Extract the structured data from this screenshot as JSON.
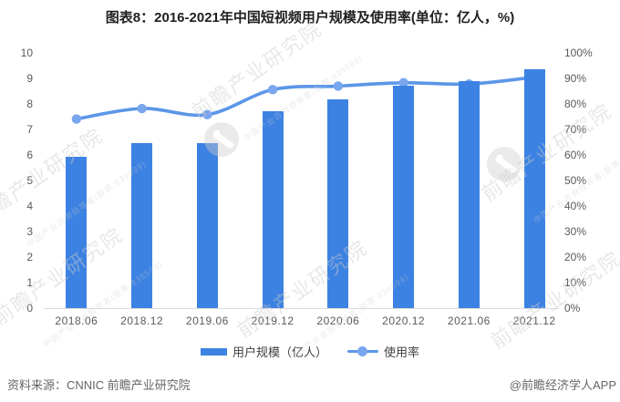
{
  "title": "图表8：2016-2021年中国短视频用户规模及使用率(单位：亿人，%)",
  "chart_data": {
    "type": "bar",
    "subtype": "bar-line-combo",
    "title": "图表8：2016-2021年中国短视频用户规模及使用率(单位：亿人，%)",
    "categories": [
      "2018.06",
      "2018.12",
      "2019.06",
      "2019.12",
      "2020.06",
      "2020.12",
      "2021.06",
      "2021.12"
    ],
    "series": [
      {
        "name": "用户规模（亿人）",
        "type": "bar",
        "axis": "left",
        "color": "#3c82e2",
        "values": [
          5.94,
          6.48,
          6.48,
          7.73,
          8.18,
          8.73,
          8.88,
          9.34
        ]
      },
      {
        "name": "使用率",
        "type": "line",
        "axis": "right",
        "color": "#5b96e8",
        "marker_color": "#7aa6ee",
        "values": [
          74.1,
          78.2,
          75.8,
          85.6,
          87.0,
          88.3,
          87.8,
          90.5
        ]
      }
    ],
    "y_axis_left": {
      "min": 0,
      "max": 10,
      "step": 1,
      "ticks": [
        "0",
        "1",
        "2",
        "3",
        "4",
        "5",
        "6",
        "7",
        "8",
        "9",
        "10"
      ]
    },
    "y_axis_right": {
      "min": 0,
      "max": 100,
      "step": 10,
      "ticks": [
        "0%",
        "10%",
        "20%",
        "30%",
        "40%",
        "50%",
        "60%",
        "70%",
        "80%",
        "90%",
        "100%"
      ]
    },
    "grid": false,
    "legend_position": "bottom"
  },
  "footer": {
    "source": "资料来源：CNNIC 前瞻产业研究院",
    "brand": "@前瞻经济学人APP"
  },
  "watermark": {
    "large": "前瞻产业研究院",
    "small": "中国产业咨询领导者(股票:839599)"
  },
  "colors": {
    "bar": "#3c82e2",
    "line": "#5b96e8",
    "marker": "#7aa6ee",
    "axis_text": "#595959",
    "axis_line": "#dcdcdc",
    "title_text": "#1f1f1f",
    "footer_text": "#666666",
    "watermark": "#cccccc"
  }
}
